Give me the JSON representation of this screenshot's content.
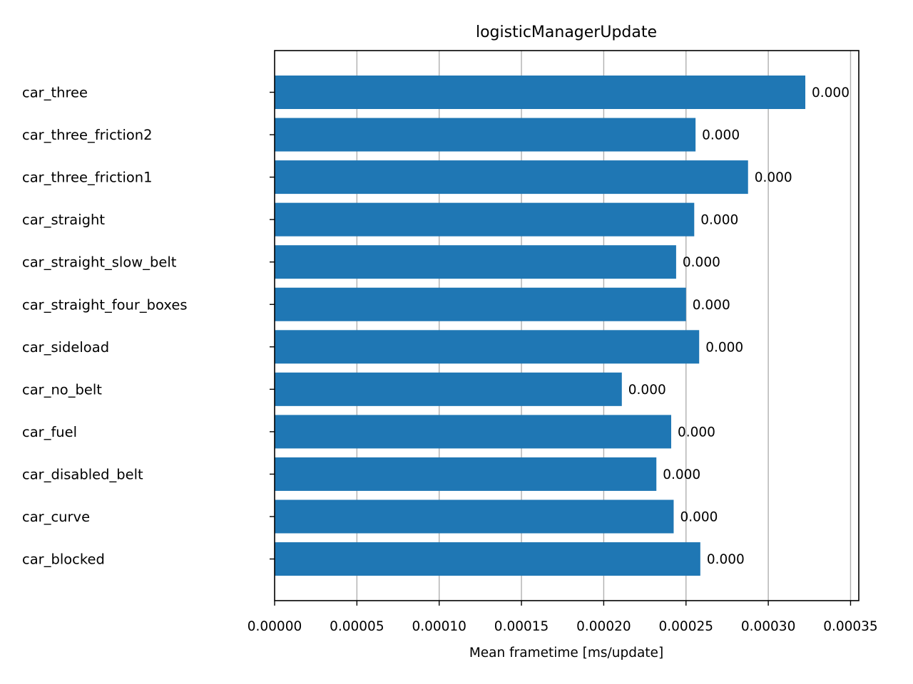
{
  "chart_data": {
    "type": "bar",
    "orientation": "horizontal",
    "title": "logisticManagerUpdate",
    "xlabel": "Mean frametime [ms/update]",
    "ylabel": "",
    "xlim": [
      0,
      0.000355
    ],
    "grid": "x",
    "bar_color": "#1f77b4",
    "categories": [
      "car_three",
      "car_three_friction2",
      "car_three_friction1",
      "car_straight",
      "car_straight_slow_belt",
      "car_straight_four_boxes",
      "car_sideload",
      "car_no_belt",
      "car_fuel",
      "car_disabled_belt",
      "car_curve",
      "car_blocked"
    ],
    "values": [
      0.0003225,
      0.0002558,
      0.0002877,
      0.000255,
      0.000244,
      0.00025,
      0.000258,
      0.000211,
      0.000241,
      0.000232,
      0.0002425,
      0.0002587
    ],
    "data_labels": [
      "0.000",
      "0.000",
      "0.000",
      "0.000",
      "0.000",
      "0.000",
      "0.000",
      "0.000",
      "0.000",
      "0.000",
      "0.000",
      "0.000"
    ],
    "xticks": [
      0,
      5e-05,
      0.0001,
      0.00015,
      0.0002,
      0.00025,
      0.0003,
      0.00035
    ],
    "xtick_labels": [
      "0.00000",
      "0.00005",
      "0.00010",
      "0.00015",
      "0.00020",
      "0.00025",
      "0.00030",
      "0.00035"
    ]
  }
}
